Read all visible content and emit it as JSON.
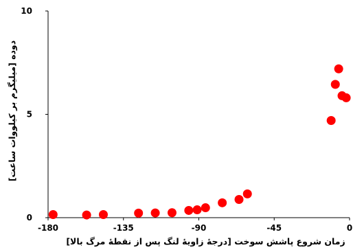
{
  "chart_data": {
    "type": "scatter",
    "xlabel": "زمان شروع پاشش سوخت [درجهٔ زاویهٔ لنگ پس از نقطهٔ مرگ بالا]",
    "ylabel": "دوده [میلیگرم بر کیلووات ساعت]",
    "xlim": [
      -180,
      0
    ],
    "ylim": [
      0,
      10
    ],
    "x_ticks": [
      -180,
      -135,
      -90,
      -45,
      0
    ],
    "y_ticks": [
      0,
      5,
      10
    ],
    "x_tick_labels": [
      "-180",
      "-135",
      "-90",
      "-45",
      "0"
    ],
    "y_tick_labels": [
      "0",
      "5",
      "10"
    ],
    "grid": false,
    "marker_color": "#ff0000",
    "points": [
      {
        "x": -177,
        "y": 0.15
      },
      {
        "x": -157,
        "y": 0.13
      },
      {
        "x": -147,
        "y": 0.15
      },
      {
        "x": -126,
        "y": 0.22
      },
      {
        "x": -116,
        "y": 0.23
      },
      {
        "x": -106,
        "y": 0.24
      },
      {
        "x": -96,
        "y": 0.35
      },
      {
        "x": -91,
        "y": 0.38
      },
      {
        "x": -86,
        "y": 0.48
      },
      {
        "x": -76,
        "y": 0.72
      },
      {
        "x": -66,
        "y": 0.88
      },
      {
        "x": -61,
        "y": 1.15
      },
      {
        "x": -11,
        "y": 4.7
      },
      {
        "x": -8.5,
        "y": 6.45
      },
      {
        "x": -6.5,
        "y": 7.2
      },
      {
        "x": -4.5,
        "y": 5.9
      },
      {
        "x": -2,
        "y": 5.8
      }
    ]
  }
}
